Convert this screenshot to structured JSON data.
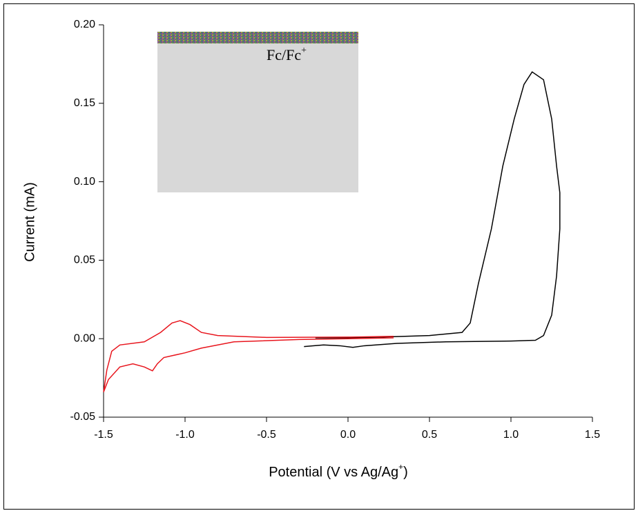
{
  "chart_data": {
    "type": "line",
    "xlabel": "Potential  (V vs Ag/Ag",
    "xlabel_sup": "+",
    "xlabel_end": ")",
    "ylabel": "Current (mA)",
    "annotation": "Fc/Fc",
    "annotation_sup": "+",
    "xlim": [
      -1.5,
      1.5
    ],
    "ylim": [
      -0.05,
      0.2
    ],
    "xticks": [
      -1.5,
      {
        "value": -1,
        "label": "-1.0"
      },
      -0.5,
      {
        "value": 0,
        "label": "0.0"
      },
      0.5,
      {
        "value": 1,
        "label": "1.0"
      },
      1.5
    ],
    "yticks": [
      -0.05,
      {
        "value": 0,
        "label": "0.00"
      },
      0.05,
      {
        "value": 0.1,
        "label": "0.10"
      },
      0.15,
      {
        "value": 0.2,
        "label": "0.20"
      }
    ],
    "series": [
      {
        "color": "#000000",
        "x": [
          -0.27,
          -0.15,
          -0.05,
          0.03,
          0.1,
          0.3,
          0.6,
          1.0,
          1.15,
          1.2,
          1.25,
          1.28,
          1.3,
          1.3,
          1.28,
          1.25,
          1.2,
          1.13,
          1.08,
          1.02,
          0.95,
          0.88,
          0.8,
          0.75,
          0.7,
          0.5,
          0.2,
          0,
          -0.2
        ],
        "values": [
          -0.005,
          -0.004,
          -0.0045,
          -0.0055,
          -0.0045,
          -0.003,
          -0.002,
          -0.0015,
          -0.001,
          0.002,
          0.015,
          0.04,
          0.07,
          0.093,
          0.11,
          0.14,
          0.165,
          0.17,
          0.162,
          0.14,
          0.11,
          0.07,
          0.035,
          0.01,
          0.004,
          0.002,
          0.001,
          0.0005,
          0.0005
        ]
      },
      {
        "color": "#e8141c",
        "x": [
          0.28,
          0,
          -0.5,
          -0.8,
          -0.9,
          -0.97,
          -1.03,
          -1.08,
          -1.15,
          -1.25,
          -1.4,
          -1.45,
          -1.48,
          -1.5,
          -1.47,
          -1.4,
          -1.32,
          -1.25,
          -1.2,
          -1.17,
          -1.13,
          -1.0,
          -0.9,
          -0.7,
          -0.3,
          0,
          0.28
        ],
        "values": [
          0.0015,
          0.001,
          0.0008,
          0.002,
          0.004,
          0.009,
          0.0115,
          0.01,
          0.004,
          -0.002,
          -0.004,
          -0.008,
          -0.02,
          -0.034,
          -0.026,
          -0.018,
          -0.016,
          -0.018,
          -0.0205,
          -0.016,
          -0.012,
          -0.009,
          -0.006,
          -0.002,
          -0.0005,
          0,
          0.0005
        ]
      }
    ]
  }
}
